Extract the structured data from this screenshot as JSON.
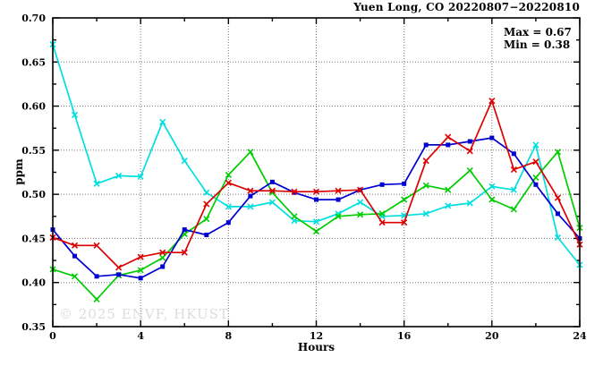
{
  "chart": {
    "title": "Yuen Long, CO 20220807−20220810",
    "annotation": {
      "max_label": "Max = 0.67",
      "min_label": "Min = 0.38"
    },
    "ylabel": "ppm",
    "xlabel": "Hours",
    "watermark": "© 2025 ENVF, HKUST"
  },
  "chart_data": {
    "type": "line",
    "title": "Yuen Long, CO 20220807−20220810",
    "xlabel": "Hours",
    "ylabel": "ppm",
    "xlim": [
      0,
      24
    ],
    "ylim": [
      0.35,
      0.7
    ],
    "x_major_ticks": [
      0,
      4,
      8,
      12,
      16,
      20,
      24
    ],
    "x_minor_step": 2,
    "y_major_ticks": [
      0.35,
      0.4,
      0.45,
      0.5,
      0.55,
      0.6,
      0.65,
      0.7
    ],
    "y_minor_step": 0.025,
    "grid": true,
    "legend": "none",
    "annotations": [
      "Max = 0.67",
      "Min = 0.38"
    ],
    "x": [
      0,
      1,
      2,
      3,
      4,
      5,
      6,
      7,
      8,
      9,
      10,
      11,
      12,
      13,
      14,
      15,
      16,
      17,
      18,
      19,
      20,
      21,
      22,
      23,
      24
    ],
    "series": [
      {
        "name": "series-cyan",
        "color": "#00dfe0",
        "marker": "cross",
        "values": [
          0.67,
          0.59,
          0.512,
          0.521,
          0.52,
          0.582,
          0.538,
          0.502,
          0.486,
          0.486,
          0.491,
          0.47,
          0.469,
          0.478,
          0.491,
          0.475,
          0.476,
          0.478,
          0.487,
          0.49,
          0.509,
          0.505,
          0.556,
          0.451,
          0.42
        ]
      },
      {
        "name": "series-green",
        "color": "#00cc00",
        "marker": "cross",
        "values": [
          0.415,
          0.407,
          0.381,
          0.408,
          0.414,
          0.428,
          0.455,
          0.472,
          0.522,
          0.548,
          0.502,
          0.475,
          0.458,
          0.475,
          0.477,
          0.478,
          0.494,
          0.51,
          0.505,
          0.527,
          0.494,
          0.483,
          0.519,
          0.548,
          0.462
        ]
      },
      {
        "name": "series-blue",
        "color": "#0000d0",
        "marker": "square",
        "values": [
          0.46,
          0.43,
          0.407,
          0.409,
          0.405,
          0.418,
          0.46,
          0.454,
          0.468,
          0.498,
          0.514,
          0.502,
          0.494,
          0.494,
          0.505,
          0.511,
          0.512,
          0.556,
          0.556,
          0.56,
          0.564,
          0.546,
          0.511,
          0.478,
          0.45
        ]
      },
      {
        "name": "series-red",
        "color": "#dd0000",
        "marker": "cross",
        "values": [
          0.451,
          0.442,
          0.442,
          0.417,
          0.429,
          0.434,
          0.434,
          0.489,
          0.513,
          0.504,
          0.504,
          0.503,
          0.503,
          0.504,
          0.505,
          0.468,
          0.468,
          0.538,
          0.565,
          0.549,
          0.606,
          0.528,
          0.537,
          0.496,
          0.443
        ]
      }
    ]
  }
}
